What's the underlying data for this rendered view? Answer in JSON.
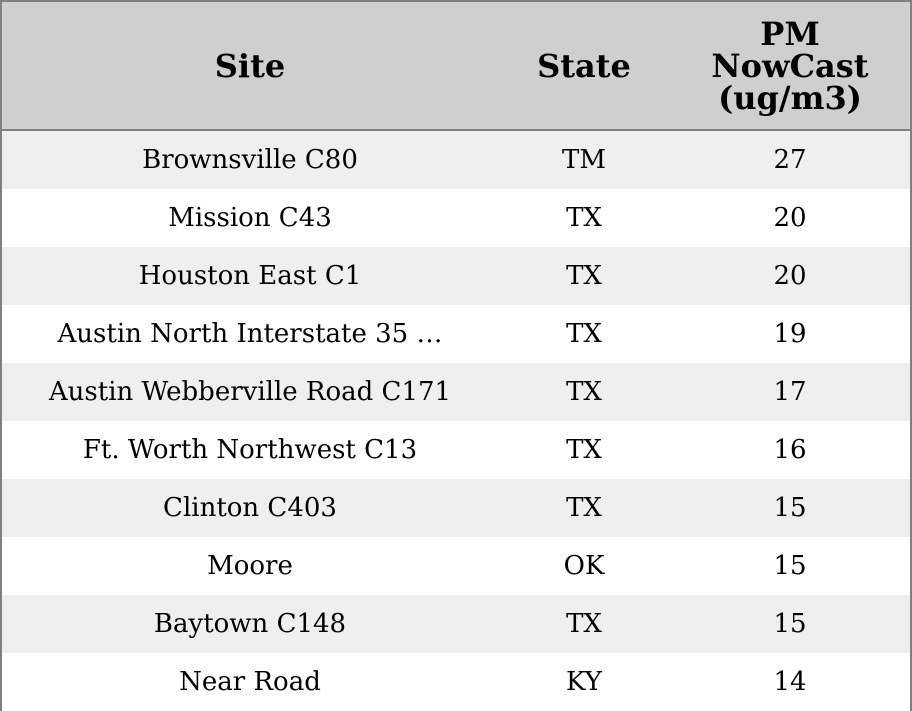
{
  "table": {
    "headers": {
      "site": "Site",
      "state": "State",
      "pm": "PM NowCast (ug/m3)"
    },
    "rows": [
      {
        "site": "Brownsville C80",
        "state": "TM",
        "pm": "27"
      },
      {
        "site": "Mission C43",
        "state": "TX",
        "pm": "20"
      },
      {
        "site": "Houston East C1",
        "state": "TX",
        "pm": "20"
      },
      {
        "site": "Austin North Interstate 35 …",
        "state": "TX",
        "pm": "19"
      },
      {
        "site": "Austin Webberville Road C171",
        "state": "TX",
        "pm": "17"
      },
      {
        "site": "Ft. Worth Northwest C13",
        "state": "TX",
        "pm": "16"
      },
      {
        "site": "Clinton C403",
        "state": "TX",
        "pm": "15"
      },
      {
        "site": "Moore",
        "state": "OK",
        "pm": "15"
      },
      {
        "site": "Baytown C148",
        "state": "TX",
        "pm": "15"
      },
      {
        "site": "Near Road",
        "state": "KY",
        "pm": "14"
      }
    ]
  },
  "colors": {
    "header_bg": "#cfcfcf",
    "row_alt_bg": "#efefef",
    "row_bg": "#ffffff",
    "border": "#808080"
  }
}
